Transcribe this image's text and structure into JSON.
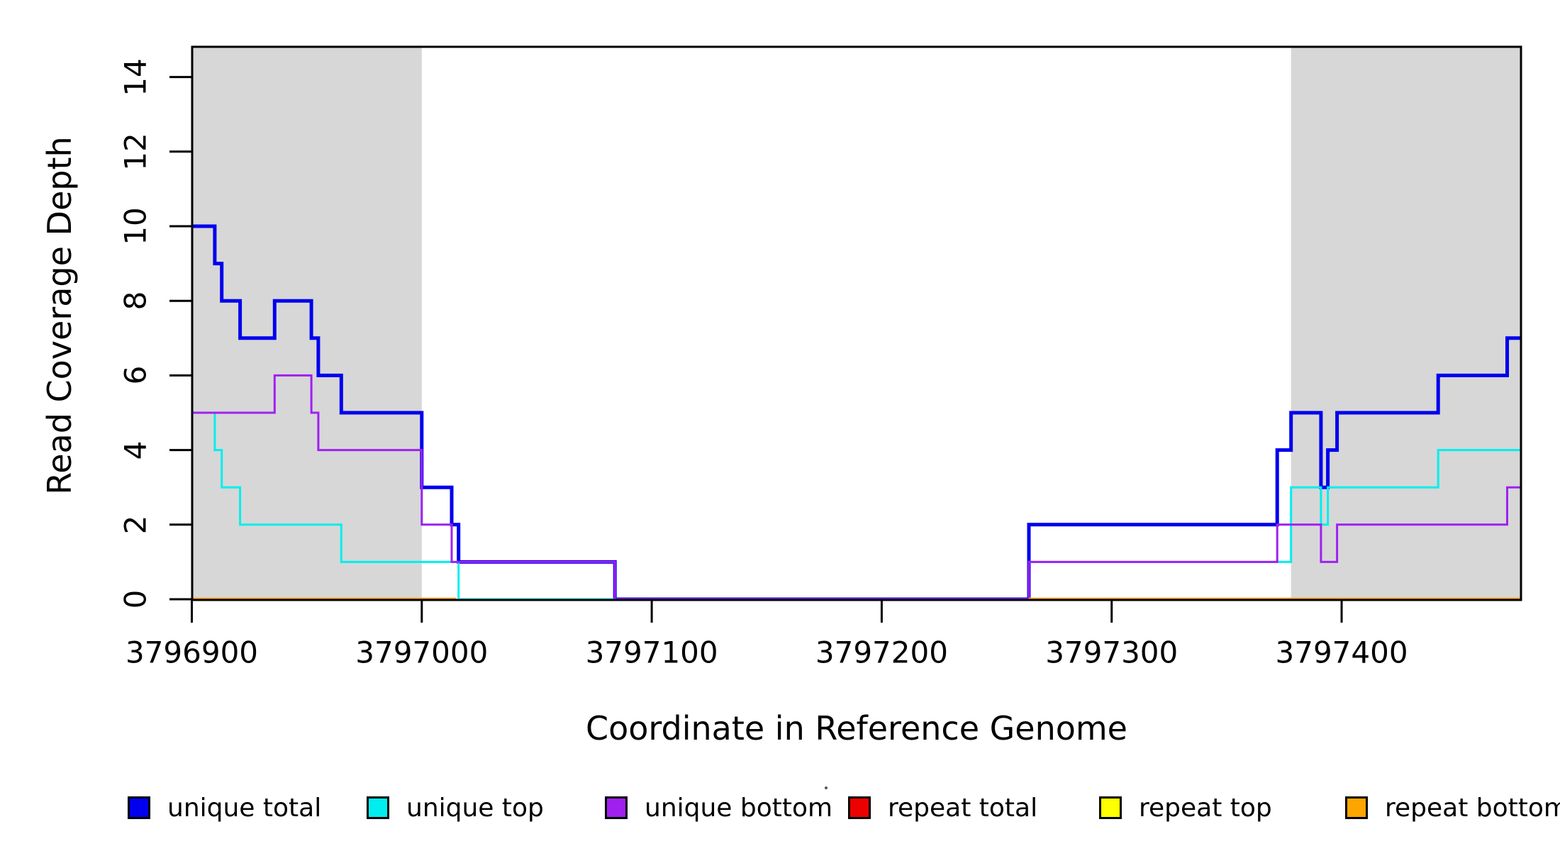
{
  "chart_data": {
    "type": "line",
    "step": true,
    "title": "",
    "xlabel": "Coordinate in Reference Genome",
    "ylabel": "Read Coverage Depth",
    "xlim": [
      3796900,
      3797478
    ],
    "ylim": [
      0,
      14.8
    ],
    "grid": false,
    "x_ticks": [
      3796900,
      3797000,
      3797100,
      3797200,
      3797300,
      3797400
    ],
    "y_ticks": [
      0,
      2,
      4,
      6,
      8,
      10,
      12,
      14
    ],
    "shaded_regions": [
      {
        "name": "repeat-region-left",
        "x": [
          3796900,
          3797000
        ],
        "color": "#D7D7D7"
      },
      {
        "name": "repeat-region-right",
        "x": [
          3797378,
          3797478
        ],
        "color": "#D7D7D7"
      }
    ],
    "series": [
      {
        "name": "unique total",
        "color": "#0000EE",
        "width": 5,
        "points": [
          [
            3796900,
            10
          ],
          [
            3796910,
            9
          ],
          [
            3796913,
            8
          ],
          [
            3796921,
            7
          ],
          [
            3796936,
            8
          ],
          [
            3796952,
            7
          ],
          [
            3796955,
            6
          ],
          [
            3796965,
            5
          ],
          [
            3797000,
            3
          ],
          [
            3797013,
            2
          ],
          [
            3797016,
            1
          ],
          [
            3797084,
            0
          ],
          [
            3797264,
            2
          ],
          [
            3797372,
            4
          ],
          [
            3797378,
            5
          ],
          [
            3797391,
            3
          ],
          [
            3797394,
            4
          ],
          [
            3797398,
            5
          ],
          [
            3797442,
            6
          ],
          [
            3797472,
            7
          ]
        ]
      },
      {
        "name": "unique top",
        "color": "#00EEEE",
        "width": 3,
        "points": [
          [
            3796900,
            5
          ],
          [
            3796910,
            4
          ],
          [
            3796913,
            3
          ],
          [
            3796921,
            2
          ],
          [
            3796965,
            1
          ],
          [
            3797016,
            0
          ],
          [
            3797264,
            1
          ],
          [
            3797378,
            3
          ],
          [
            3797391,
            2
          ],
          [
            3797394,
            3
          ],
          [
            3797442,
            4
          ]
        ]
      },
      {
        "name": "unique bottom",
        "color": "#A020F0",
        "width": 3,
        "points": [
          [
            3796900,
            5
          ],
          [
            3796936,
            6
          ],
          [
            3796952,
            5
          ],
          [
            3796955,
            4
          ],
          [
            3797000,
            2
          ],
          [
            3797013,
            1
          ],
          [
            3797084,
            0
          ],
          [
            3797264,
            1
          ],
          [
            3797372,
            2
          ],
          [
            3797391,
            1
          ],
          [
            3797398,
            2
          ],
          [
            3797472,
            3
          ]
        ]
      },
      {
        "name": "repeat total",
        "color": "#EE0000",
        "width": 3,
        "points": [
          [
            3796900,
            0
          ],
          [
            3797015,
            null
          ],
          [
            3797264,
            0
          ]
        ]
      },
      {
        "name": "repeat top",
        "color": "#FFFF00",
        "width": 3,
        "points": [
          [
            3796900,
            0
          ],
          [
            3797015,
            null
          ],
          [
            3797264,
            0
          ]
        ]
      },
      {
        "name": "repeat bottom",
        "color": "#FFA500",
        "width": 4.5,
        "points": [
          [
            3796900,
            0
          ],
          [
            3797015,
            null
          ],
          [
            3797264,
            0
          ]
        ]
      }
    ],
    "legend": {
      "position": "bottom",
      "entries": [
        {
          "label": "unique total",
          "color": "#0000EE"
        },
        {
          "label": "unique top",
          "color": "#00EEEE"
        },
        {
          "label": "unique bottom",
          "color": "#A020F0"
        },
        {
          "label": "repeat total",
          "color": "#EE0000"
        },
        {
          "label": "repeat top",
          "color": "#FFFF00"
        },
        {
          "label": "repeat bottom",
          "color": "#FFA500"
        }
      ]
    },
    "axis_color": "#000000",
    "background_color": "#FFFFFF"
  }
}
